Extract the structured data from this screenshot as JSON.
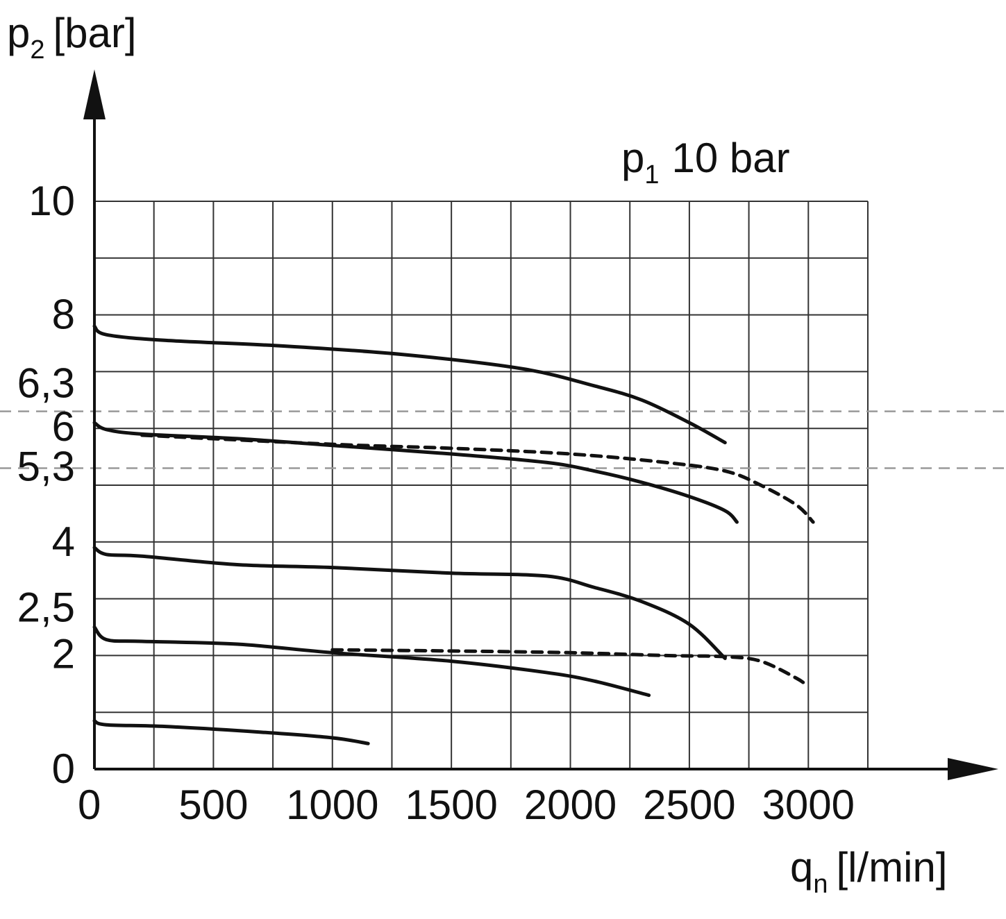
{
  "chart_data": {
    "type": "line",
    "ylabel": {
      "main": "p",
      "sub": "2",
      "unit": "[bar]"
    },
    "xlabel": {
      "main": "q",
      "sub": "n",
      "unit": "[l/min]"
    },
    "annotation": {
      "main": "p",
      "sub": "1",
      "rest": "10 bar"
    },
    "xlim": [
      0,
      3250
    ],
    "ylim": [
      0,
      10
    ],
    "x_ticks": [
      {
        "value": 0,
        "label": "0"
      },
      {
        "value": 500,
        "label": "500"
      },
      {
        "value": 1000,
        "label": "1000"
      },
      {
        "value": 1500,
        "label": "1500"
      },
      {
        "value": 2000,
        "label": "2000"
      },
      {
        "value": 2500,
        "label": "2500"
      },
      {
        "value": 3000,
        "label": "3000"
      }
    ],
    "y_ticks": [
      {
        "value": 0,
        "label": "0"
      },
      {
        "value": 2,
        "label": "2"
      },
      {
        "value": 2.5,
        "label": "2,5"
      },
      {
        "value": 4,
        "label": "4"
      },
      {
        "value": 5.3,
        "label": "5,3"
      },
      {
        "value": 6,
        "label": "6"
      },
      {
        "value": 6.3,
        "label": "6,3"
      },
      {
        "value": 8,
        "label": "8"
      },
      {
        "value": 10,
        "label": "10"
      }
    ],
    "grid": true,
    "reference_lines": [
      6.3,
      5.3
    ],
    "series": [
      {
        "style": "solid",
        "x": [
          0,
          50,
          300,
          800,
          1300,
          1800,
          2100,
          2300,
          2500,
          2650
        ],
        "y": [
          7.8,
          7.65,
          7.55,
          7.45,
          7.3,
          7.05,
          6.75,
          6.5,
          6.1,
          5.75
        ]
      },
      {
        "style": "solid",
        "x": [
          0,
          50,
          200,
          600,
          1000,
          1500,
          1900,
          2100,
          2300,
          2500,
          2650,
          2700
        ],
        "y": [
          6.1,
          5.98,
          5.9,
          5.82,
          5.7,
          5.55,
          5.4,
          5.25,
          5.05,
          4.8,
          4.55,
          4.35
        ]
      },
      {
        "style": "dotted",
        "x": [
          200,
          1000,
          1500,
          2000,
          2400,
          2650,
          2800,
          2950,
          3020
        ],
        "y": [
          5.88,
          5.72,
          5.65,
          5.55,
          5.4,
          5.25,
          5.0,
          4.65,
          4.35
        ]
      },
      {
        "style": "solid",
        "x": [
          0,
          50,
          200,
          600,
          1000,
          1500,
          1900,
          2100,
          2300,
          2500,
          2650
        ],
        "y": [
          3.9,
          3.78,
          3.75,
          3.6,
          3.55,
          3.45,
          3.4,
          3.2,
          2.95,
          2.55,
          1.95
        ]
      },
      {
        "style": "solid",
        "x": [
          0,
          50,
          200,
          600,
          1000,
          1500,
          1900,
          2100,
          2330
        ],
        "y": [
          2.5,
          2.28,
          2.25,
          2.2,
          2.05,
          1.9,
          1.7,
          1.55,
          1.3
        ]
      },
      {
        "style": "dotted",
        "x": [
          1000,
          1500,
          2000,
          2400,
          2650,
          2800,
          2950,
          3000
        ],
        "y": [
          2.1,
          2.08,
          2.05,
          2.0,
          1.98,
          1.9,
          1.6,
          1.45
        ]
      },
      {
        "style": "solid",
        "x": [
          0,
          50,
          300,
          700,
          1000,
          1150
        ],
        "y": [
          0.85,
          0.78,
          0.75,
          0.65,
          0.55,
          0.45
        ]
      }
    ]
  }
}
